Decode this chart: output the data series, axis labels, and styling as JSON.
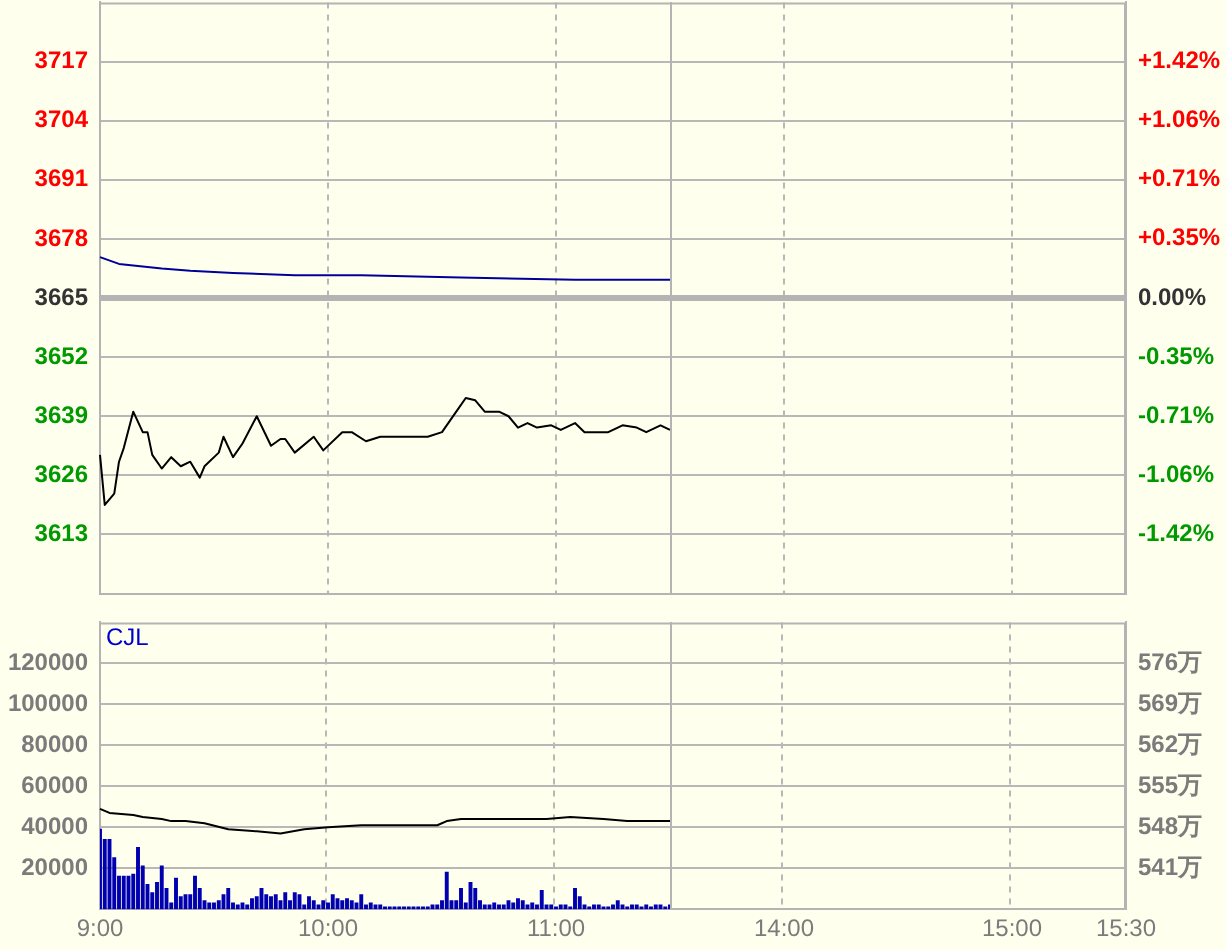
{
  "chart_data": [
    {
      "type": "line",
      "ylim": [
        3600,
        3730
      ],
      "y2lim": [
        -1.774,
        1.774
      ],
      "categories": [
        null,
        null,
        null,
        null,
        null,
        null,
        null,
        null,
        null,
        null,
        null,
        null,
        null,
        null,
        null,
        null,
        null,
        null,
        null,
        null,
        null,
        null,
        null,
        null,
        null,
        null,
        null,
        null,
        null,
        null,
        null,
        null,
        null,
        null,
        null,
        null,
        null,
        null,
        null,
        null,
        null,
        null,
        null,
        null,
        null,
        null,
        null,
        null,
        null,
        null,
        null,
        null,
        null,
        null,
        null,
        null,
        null,
        null,
        null,
        null,
        null,
        null,
        null,
        null,
        null,
        null,
        null,
        null,
        null,
        null,
        null,
        null,
        null,
        null,
        null,
        null,
        null,
        null,
        null,
        null,
        null,
        null,
        null,
        null,
        null,
        null,
        null,
        null,
        null,
        null,
        null,
        null,
        null,
        null,
        null,
        null,
        null,
        null,
        null,
        null,
        null,
        null,
        null,
        null,
        null,
        null,
        null,
        null,
        null,
        null,
        null,
        null,
        null,
        null,
        null,
        null,
        null,
        null,
        null,
        null,
        null,
        null,
        null,
        null,
        null,
        null,
        null,
        null,
        null,
        null,
        null,
        null,
        null,
        null,
        null,
        null,
        null,
        null,
        null,
        null,
        null,
        null,
        null,
        null,
        null,
        null,
        null,
        null,
        null,
        null,
        null,
        null,
        null,
        null,
        null,
        null,
        null,
        null,
        null,
        null,
        null,
        null,
        null,
        null,
        null,
        null,
        null,
        null,
        null,
        null,
        null,
        null,
        null,
        null,
        null,
        null,
        null,
        null,
        null,
        null,
        null,
        null,
        null,
        null,
        null,
        null,
        null,
        null,
        null,
        null,
        null,
        null,
        null,
        null,
        null,
        null,
        null,
        null,
        null,
        null,
        null,
        null,
        null,
        null,
        null,
        null,
        null,
        null,
        null,
        null,
        null,
        null,
        null,
        null,
        null,
        null,
        null
      ],
      "yticks": [
        3613,
        3626,
        3639,
        3652,
        3665,
        3678,
        3691,
        3704,
        3717
      ],
      "y2ticks": [
        {
          "value": -1.419,
          "label": "-1.42%"
        },
        {
          "value": -1.064,
          "label": "-1.06%"
        },
        {
          "value": -0.709,
          "label": "-0.71%"
        },
        {
          "value": -0.355,
          "label": "-0.35%"
        },
        {
          "value": 0,
          "label": "0.00%"
        },
        {
          "value": 0.355,
          "label": "+0.35%"
        },
        {
          "value": 0.709,
          "label": "+0.71%"
        },
        {
          "value": 1.064,
          "label": "+1.06%"
        },
        {
          "value": 1.419,
          "label": "+1.42%"
        }
      ],
      "grid": true,
      "legend": false,
      "marker": "none",
      "ref_lines": [
        {
          "axis": "y",
          "value": 3665,
          "color": "#b4b4b4"
        }
      ],
      "series": [
        {
          "color": "#000000",
          "values": [
            3630.5,
            3619.5,
            null,
            3622,
            3629,
            3632,
            null,
            3640,
            null,
            3635.5,
            3635.5,
            3630.5,
            null,
            3627.5,
            null,
            3630,
            null,
            3628,
            null,
            3629,
            null,
            3625.5,
            3628,
            null,
            null,
            3631,
            3634.5,
            null,
            3630,
            null,
            3633,
            null,
            null,
            3639,
            null,
            null,
            3632.5,
            null,
            3634,
            3634,
            null,
            3631,
            null,
            null,
            null,
            3634.5,
            null,
            3631.5,
            null,
            null,
            null,
            3635.5,
            null,
            3635.5,
            null,
            null,
            3633.5,
            null,
            null,
            3634.5,
            3634.5,
            null,
            null,
            null,
            null,
            null,
            null,
            null,
            null,
            3634.5,
            null,
            null,
            3635.5,
            null,
            null,
            3640,
            null,
            3643,
            null,
            3642.5,
            null,
            3640,
            null,
            null,
            3640,
            null,
            3639,
            null,
            3636.5,
            null,
            3637.5,
            null,
            3636.5,
            null,
            null,
            3637,
            null,
            3636,
            null,
            null,
            3637.5,
            null,
            3635.5,
            null,
            null,
            null,
            null,
            3635.5,
            null,
            null,
            3637,
            null,
            null,
            3636.5,
            null,
            3635.5,
            null,
            null,
            3637,
            null,
            3636,
            null,
            null,
            null,
            null,
            null,
            null,
            null,
            null,
            null,
            null,
            null,
            null,
            null,
            null,
            null,
            null,
            null,
            null,
            null,
            null,
            null,
            null,
            null,
            null,
            null,
            null,
            null,
            null,
            null,
            null,
            null,
            null,
            null,
            null,
            null,
            null,
            null,
            null,
            null,
            null,
            null,
            null,
            null,
            null,
            null,
            null,
            null,
            null,
            null,
            null,
            null,
            null,
            null,
            null,
            null,
            null,
            null,
            null,
            null,
            null,
            null,
            null,
            null,
            null,
            null,
            null,
            null,
            null,
            null,
            null,
            null,
            null,
            null,
            null,
            null,
            null,
            null,
            null,
            null,
            null,
            null,
            null,
            null,
            null,
            null,
            null,
            null,
            null,
            null,
            null,
            null,
            null,
            null,
            null,
            null,
            null
          ]
        },
        {
          "color": "#000099",
          "values": [
            3674,
            null,
            null,
            null,
            3672.5,
            null,
            null,
            null,
            null,
            null,
            null,
            null,
            null,
            3671.5,
            null,
            null,
            null,
            null,
            null,
            3671,
            null,
            null,
            null,
            null,
            null,
            null,
            null,
            null,
            3670.5,
            null,
            null,
            null,
            null,
            null,
            null,
            null,
            null,
            null,
            null,
            null,
            null,
            3670,
            null,
            null,
            null,
            null,
            null,
            null,
            null,
            null,
            null,
            null,
            null,
            null,
            null,
            3670,
            null,
            null,
            null,
            null,
            null,
            null,
            null,
            null,
            null,
            null,
            null,
            null,
            null,
            null,
            null,
            null,
            null,
            null,
            null,
            null,
            3669.5,
            null,
            null,
            null,
            null,
            null,
            null,
            null,
            null,
            null,
            null,
            null,
            null,
            null,
            null,
            null,
            null,
            null,
            null,
            null,
            null,
            null,
            null,
            null,
            3669,
            null,
            null,
            null,
            null,
            null,
            null,
            null,
            null,
            null,
            null,
            null,
            null,
            null,
            null,
            null,
            null,
            null,
            null,
            null,
            3669,
            null,
            null,
            null,
            null,
            null,
            null,
            null,
            null,
            null,
            null,
            null,
            null,
            null,
            null,
            null,
            null,
            null,
            null,
            null,
            null,
            null,
            null,
            null,
            null,
            null,
            null,
            null,
            null,
            null,
            null,
            null,
            null,
            null,
            null,
            null,
            null,
            null,
            null,
            null,
            null,
            null,
            null,
            null,
            null,
            null,
            null,
            null,
            null,
            null,
            null,
            null,
            null,
            null,
            null,
            null,
            null,
            null,
            null,
            null,
            null,
            null,
            null,
            null,
            null,
            null,
            null,
            null,
            null,
            null,
            null,
            null,
            null,
            null,
            null,
            null,
            null,
            null,
            null,
            null,
            null,
            null,
            null,
            null,
            null,
            null,
            null,
            null,
            null,
            null,
            null,
            null,
            null,
            null,
            null,
            null,
            null
          ]
        }
      ]
    },
    {
      "type": "bar",
      "ylim": [
        0,
        140000
      ],
      "y2lim": [
        534,
        583
      ],
      "categories": [
        "9:00",
        null,
        null,
        null,
        null,
        null,
        null,
        null,
        null,
        null,
        null,
        null,
        null,
        null,
        null,
        null,
        null,
        null,
        null,
        null,
        null,
        null,
        null,
        null,
        null,
        null,
        null,
        null,
        null,
        null,
        null,
        null,
        null,
        null,
        null,
        null,
        null,
        null,
        null,
        null,
        null,
        null,
        null,
        null,
        null,
        null,
        null,
        null,
        "10:00",
        null,
        null,
        null,
        null,
        null,
        null,
        null,
        null,
        null,
        null,
        null,
        null,
        null,
        null,
        null,
        null,
        null,
        null,
        null,
        null,
        null,
        null,
        null,
        null,
        null,
        null,
        null,
        null,
        null,
        null,
        null,
        null,
        null,
        null,
        null,
        null,
        null,
        null,
        null,
        null,
        null,
        null,
        null,
        null,
        null,
        null,
        null,
        "11:00",
        null,
        null,
        null,
        null,
        null,
        null,
        null,
        null,
        null,
        null,
        null,
        null,
        null,
        null,
        null,
        null,
        null,
        null,
        null,
        null,
        null,
        null,
        null,
        null,
        null,
        null,
        null,
        null,
        null,
        null,
        null,
        null,
        null,
        null,
        null,
        null,
        null,
        null,
        null,
        null,
        null,
        null,
        null,
        null,
        null,
        null,
        null,
        "14:00",
        null,
        null,
        null,
        null,
        null,
        null,
        null,
        null,
        null,
        null,
        null,
        null,
        null,
        null,
        null,
        null,
        null,
        null,
        null,
        null,
        null,
        null,
        null,
        null,
        null,
        null,
        null,
        null,
        null,
        null,
        null,
        null,
        null,
        null,
        null,
        null,
        null,
        null,
        null,
        null,
        null,
        null,
        null,
        null,
        null,
        null,
        null,
        "15:00",
        null,
        null,
        null,
        null,
        null,
        null,
        null,
        null,
        null,
        null,
        null,
        null,
        null,
        null,
        null,
        null,
        null,
        null,
        null,
        null,
        null,
        null,
        null,
        "15:30"
      ],
      "yticks": [
        20000,
        40000,
        60000,
        80000,
        100000,
        120000
      ],
      "y2ticks": [
        {
          "value": 541,
          "label": "541万"
        },
        {
          "value": 548,
          "label": "548万"
        },
        {
          "value": 555,
          "label": "555万"
        },
        {
          "value": 562,
          "label": "562万"
        },
        {
          "value": 569,
          "label": "569万"
        },
        {
          "value": 576,
          "label": "576万"
        }
      ],
      "grid": true,
      "legend": false,
      "marker": "none",
      "annotations": [
        "CJL"
      ],
      "series": [
        {
          "color": "#0000b0",
          "values": [
            39000,
            34000,
            34000,
            25000,
            16000,
            16000,
            16000,
            17000,
            30000,
            21000,
            12000,
            8000,
            13000,
            21000,
            10000,
            3000,
            15000,
            6000,
            7000,
            7000,
            16000,
            10000,
            4000,
            3000,
            3000,
            4000,
            7000,
            10000,
            3000,
            2000,
            3000,
            2000,
            5000,
            6000,
            10000,
            7000,
            6000,
            7000,
            4000,
            8000,
            4000,
            8000,
            7000,
            2000,
            6000,
            4000,
            2000,
            4000,
            3000,
            7000,
            5000,
            4000,
            5000,
            4000,
            3000,
            7000,
            2000,
            3000,
            2000,
            2000,
            1000,
            1000,
            1000,
            1000,
            1000,
            1000,
            1000,
            1000,
            1000,
            1000,
            2000,
            2000,
            4000,
            18000,
            4000,
            4000,
            10000,
            3000,
            13000,
            10000,
            4000,
            2000,
            2000,
            3000,
            2000,
            2000,
            4000,
            3000,
            5000,
            4000,
            2000,
            3000,
            2000,
            9000,
            2000,
            2000,
            1000,
            2000,
            2000,
            1000,
            10000,
            6000,
            2000,
            1000,
            2000,
            2000,
            1000,
            1000,
            2000,
            4000,
            2000,
            1000,
            2000,
            2000,
            1000,
            2000,
            1000,
            2000,
            2000,
            1000,
            2000,
            null,
            null,
            null,
            null,
            null,
            null,
            null,
            null,
            null,
            null,
            null,
            null,
            null,
            null,
            null,
            null,
            null,
            null,
            null,
            null,
            null,
            null,
            null,
            null,
            null,
            null,
            null,
            null,
            null,
            null,
            null,
            null,
            null,
            null,
            null,
            null,
            null,
            null,
            null,
            null,
            null,
            null,
            null,
            null,
            null,
            null,
            null,
            null,
            null,
            null,
            null,
            null,
            null,
            null,
            null,
            null,
            null,
            null,
            null,
            null,
            null,
            null,
            null,
            null,
            null,
            null,
            null,
            null,
            null,
            null,
            null,
            null,
            null,
            null,
            null,
            null,
            null,
            null,
            null,
            null,
            null,
            null,
            null,
            null,
            null,
            null,
            null,
            null,
            null,
            null,
            null,
            null,
            null,
            null,
            null,
            null
          ]
        },
        {
          "type": "line",
          "color": "#000000",
          "values": [
            49000,
            null,
            47000,
            null,
            null,
            null,
            null,
            46000,
            null,
            45000,
            null,
            null,
            null,
            44000,
            null,
            43000,
            null,
            null,
            43000,
            null,
            null,
            null,
            42000,
            null,
            null,
            null,
            null,
            39000,
            null,
            null,
            null,
            null,
            null,
            38000,
            null,
            null,
            null,
            null,
            37000,
            null,
            null,
            null,
            null,
            39000,
            null,
            null,
            null,
            null,
            40000,
            null,
            null,
            null,
            null,
            null,
            null,
            41000,
            null,
            null,
            null,
            null,
            null,
            null,
            null,
            null,
            null,
            41000,
            null,
            null,
            null,
            null,
            null,
            41000,
            null,
            43000,
            null,
            null,
            44000,
            null,
            null,
            null,
            null,
            null,
            null,
            44000,
            44000,
            null,
            null,
            null,
            null,
            null,
            null,
            null,
            null,
            null,
            44000,
            null,
            null,
            null,
            null,
            45000,
            null,
            null,
            null,
            null,
            null,
            null,
            44000,
            null,
            null,
            null,
            null,
            43000,
            null,
            null,
            null,
            null,
            null,
            null,
            null,
            null,
            43000,
            null,
            null,
            null,
            null,
            null,
            null,
            null,
            null,
            null,
            null,
            null,
            null,
            null,
            null,
            null,
            null,
            null,
            null,
            null,
            null,
            null,
            null,
            null,
            null,
            null,
            null,
            null,
            null,
            null,
            null,
            null,
            null,
            null,
            null,
            null,
            null,
            null,
            null,
            null,
            null,
            null,
            null,
            null,
            null,
            null,
            null,
            null,
            null,
            null,
            null,
            null,
            null,
            null,
            null,
            null,
            null,
            null,
            null,
            null,
            null,
            null,
            null,
            null,
            null,
            null,
            null,
            null,
            null,
            null,
            null,
            null,
            null,
            null,
            null,
            null,
            null,
            null,
            null,
            null,
            null,
            null,
            null,
            null,
            null,
            null,
            null,
            null,
            null,
            null,
            null,
            null,
            null,
            null,
            null,
            null,
            null
          ]
        }
      ]
    }
  ]
}
